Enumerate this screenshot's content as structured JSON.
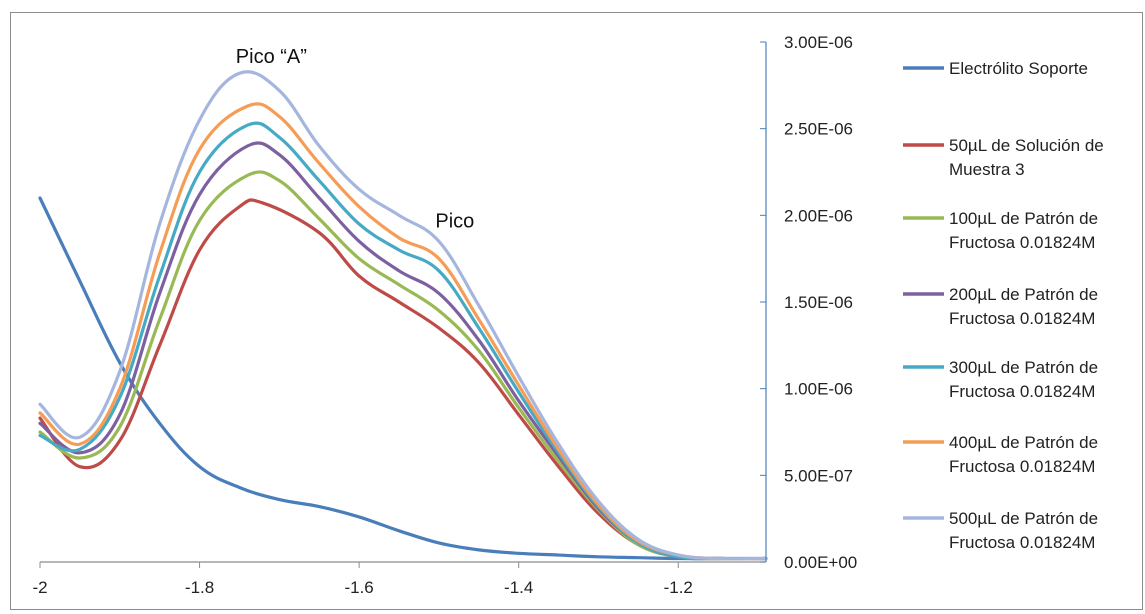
{
  "chart_data": {
    "type": "line",
    "title": "",
    "xlabel": "",
    "ylabel": "",
    "xlim": [
      -2.0,
      -1.09
    ],
    "ylim": [
      0,
      3e-06
    ],
    "x_ticks": [
      -2,
      -1.8,
      -1.6,
      -1.4,
      -1.2
    ],
    "x_tick_labels": [
      "-2",
      "-1.8",
      "-1.6",
      "-1.4",
      "-1.2"
    ],
    "y_ticks": [
      0,
      5e-07,
      1e-06,
      1.5e-06,
      2e-06,
      2.5e-06,
      3e-06
    ],
    "y_tick_labels": [
      "0.00E+00",
      "5.00E-07",
      "1.00E-06",
      "1.50E-06",
      "2.00E-06",
      "2.50E-06",
      "3.00E-06"
    ],
    "y_axis_position": "right",
    "grid": false,
    "legend_position": "right",
    "annotations": [
      {
        "text": "Pico “A”",
        "x": -1.71,
        "y": 2.88e-06
      },
      {
        "text": "Pico",
        "x": -1.48,
        "y": 1.93e-06
      }
    ],
    "series": [
      {
        "name": "Electrólito Soporte",
        "color": "#4a7ebb",
        "x": [
          -2.0,
          -1.95,
          -1.9,
          -1.85,
          -1.8,
          -1.75,
          -1.7,
          -1.65,
          -1.6,
          -1.55,
          -1.5,
          -1.45,
          -1.4,
          -1.35,
          -1.3,
          -1.25,
          -1.2,
          -1.15,
          -1.09
        ],
        "y": [
          2.1e-06,
          1.62e-06,
          1.15e-06,
          8e-07,
          5.5e-07,
          4.3e-07,
          3.6e-07,
          3.2e-07,
          2.6e-07,
          1.8e-07,
          1.1e-07,
          7e-08,
          5e-08,
          4e-08,
          3e-08,
          2.5e-08,
          2e-08,
          2e-08,
          2e-08
        ]
      },
      {
        "name": "50µL de Solución de Muestra 3",
        "color": "#be4b48",
        "x": [
          -2.0,
          -1.95,
          -1.9,
          -1.85,
          -1.8,
          -1.75,
          -1.72,
          -1.65,
          -1.6,
          -1.55,
          -1.5,
          -1.45,
          -1.4,
          -1.35,
          -1.3,
          -1.25,
          -1.2,
          -1.15,
          -1.09
        ],
        "y": [
          8.3e-07,
          5.5e-07,
          7e-07,
          1.25e-06,
          1.8e-06,
          2.05e-06,
          2.07e-06,
          1.9e-06,
          1.65e-06,
          1.5e-06,
          1.35e-06,
          1.15e-06,
          8.5e-07,
          5.5e-07,
          2.8e-07,
          1e-07,
          3e-08,
          2e-08,
          2e-08
        ]
      },
      {
        "name": "100µL de Patrón de Fructosa 0.01824M",
        "color": "#98b954",
        "x": [
          -2.0,
          -1.95,
          -1.9,
          -1.85,
          -1.8,
          -1.74,
          -1.7,
          -1.65,
          -1.6,
          -1.55,
          -1.5,
          -1.45,
          -1.4,
          -1.35,
          -1.3,
          -1.25,
          -1.2,
          -1.15,
          -1.09
        ],
        "y": [
          7.5e-07,
          6e-07,
          7.8e-07,
          1.4e-06,
          1.97e-06,
          2.23e-06,
          2.2e-06,
          1.98e-06,
          1.75e-06,
          1.6e-06,
          1.45e-06,
          1.22e-06,
          8.9e-07,
          5.8e-07,
          3e-07,
          1e-07,
          3e-08,
          2e-08,
          2e-08
        ]
      },
      {
        "name": "200µL de Patrón de Fructosa 0.01824M",
        "color": "#7d60a0",
        "x": [
          -2.0,
          -1.95,
          -1.9,
          -1.85,
          -1.8,
          -1.74,
          -1.7,
          -1.65,
          -1.6,
          -1.55,
          -1.5,
          -1.45,
          -1.4,
          -1.35,
          -1.3,
          -1.25,
          -1.2,
          -1.15,
          -1.09
        ],
        "y": [
          8e-07,
          6.3e-07,
          8.5e-07,
          1.55e-06,
          2.12e-06,
          2.4e-06,
          2.35e-06,
          2.1e-06,
          1.85e-06,
          1.68e-06,
          1.55e-06,
          1.28e-06,
          9.3e-07,
          6.1e-07,
          3.1e-07,
          1.1e-07,
          3e-08,
          2e-08,
          2e-08
        ]
      },
      {
        "name": "300µL de Patrón de Fructosa 0.01824M",
        "color": "#46aac5",
        "x": [
          -2.0,
          -1.95,
          -1.9,
          -1.85,
          -1.8,
          -1.74,
          -1.7,
          -1.65,
          -1.6,
          -1.55,
          -1.5,
          -1.45,
          -1.4,
          -1.35,
          -1.3,
          -1.25,
          -1.2,
          -1.15,
          -1.09
        ],
        "y": [
          7.3e-07,
          6.5e-07,
          9.5e-07,
          1.65e-06,
          2.25e-06,
          2.52e-06,
          2.45e-06,
          2.2e-06,
          1.95e-06,
          1.8e-06,
          1.68e-06,
          1.35e-06,
          9.8e-07,
          6.3e-07,
          3.2e-07,
          1.1e-07,
          3e-08,
          2e-08,
          2e-08
        ]
      },
      {
        "name": "400µL de Patrón de Fructosa 0.01824M",
        "color": "#f59d56",
        "x": [
          -2.0,
          -1.95,
          -1.9,
          -1.85,
          -1.8,
          -1.74,
          -1.7,
          -1.65,
          -1.6,
          -1.55,
          -1.5,
          -1.45,
          -1.4,
          -1.35,
          -1.3,
          -1.25,
          -1.2,
          -1.15,
          -1.09
        ],
        "y": [
          8.6e-07,
          6.8e-07,
          1e-06,
          1.78e-06,
          2.38e-06,
          2.63e-06,
          2.57e-06,
          2.3e-06,
          2.05e-06,
          1.87e-06,
          1.75e-06,
          1.4e-06,
          1.02e-06,
          6.5e-07,
          3.3e-07,
          1.2e-07,
          4e-08,
          2e-08,
          2e-08
        ]
      },
      {
        "name": "500µL de Patrón de Fructosa 0.01824M",
        "color": "#a5b6de",
        "x": [
          -2.0,
          -1.95,
          -1.9,
          -1.85,
          -1.8,
          -1.75,
          -1.7,
          -1.65,
          -1.6,
          -1.55,
          -1.5,
          -1.45,
          -1.4,
          -1.35,
          -1.3,
          -1.25,
          -1.2,
          -1.15,
          -1.09
        ],
        "y": [
          9.1e-07,
          7.2e-07,
          1.1e-06,
          1.95e-06,
          2.55e-06,
          2.82e-06,
          2.72e-06,
          2.4e-06,
          2.15e-06,
          2e-06,
          1.85e-06,
          1.48e-06,
          1.07e-06,
          6.8e-07,
          3.5e-07,
          1.3e-07,
          4e-08,
          2e-08,
          2e-08
        ]
      }
    ]
  },
  "legend": {
    "items": [
      {
        "line1": "Electrólito Soporte",
        "line2": "",
        "color": "#4a7ebb"
      },
      {
        "line1": "50µL de Solución de",
        "line2": "Muestra 3",
        "color": "#be4b48"
      },
      {
        "line1": "100µL de Patrón de",
        "line2": "Fructosa 0.01824M",
        "color": "#98b954"
      },
      {
        "line1": "200µL de Patrón de",
        "line2": "Fructosa 0.01824M",
        "color": "#7d60a0"
      },
      {
        "line1": "300µL de Patrón de",
        "line2": "Fructosa 0.01824M",
        "color": "#46aac5"
      },
      {
        "line1": "400µL de Patrón de",
        "line2": "Fructosa 0.01824M",
        "color": "#f59d56"
      },
      {
        "line1": "500µL de Patrón de",
        "line2": "Fructosa 0.01824M",
        "color": "#a5b6de"
      }
    ]
  }
}
